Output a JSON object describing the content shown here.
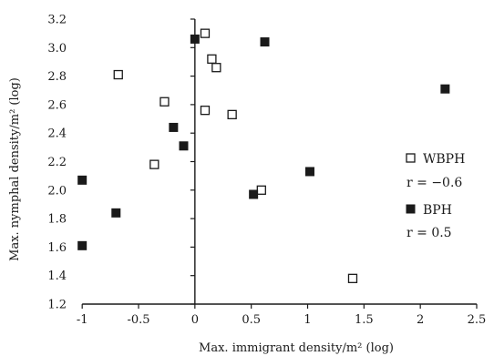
{
  "chart_data": {
    "type": "scatter",
    "xlabel": "Max. immigrant density/m² (log)",
    "ylabel": "Max. nymphal density/m²  (log)",
    "xlim": [
      -1.05,
      2.5
    ],
    "ylim": [
      1.2,
      3.2
    ],
    "x_ticks": [
      -1,
      -0.5,
      0,
      0.5,
      1,
      1.5,
      2,
      2.5
    ],
    "x_tick_labels": [
      "-1",
      "-0.5",
      "0",
      "0.5",
      "1",
      "1.5",
      "2",
      "2.5"
    ],
    "y_ticks": [
      1.2,
      1.4,
      1.6,
      1.8,
      2.0,
      2.2,
      2.4,
      2.6,
      2.8,
      3.0,
      3.2
    ],
    "y_tick_labels": [
      "1.2",
      "1.4",
      "1.6",
      "1.8",
      "2.0",
      "2.2",
      "2.4",
      "2.6",
      "2.8",
      "3.0",
      "3.2"
    ],
    "grid": false,
    "legend_position": "right",
    "series": [
      {
        "name": "WBPH",
        "marker": "open-square",
        "color": "#1a1a1a",
        "stat": "r = −0.6",
        "points": [
          {
            "x": 0.09,
            "y": 3.1
          },
          {
            "x": 0.15,
            "y": 2.92
          },
          {
            "x": 0.19,
            "y": 2.86
          },
          {
            "x": -0.68,
            "y": 2.81
          },
          {
            "x": -0.27,
            "y": 2.62
          },
          {
            "x": 0.09,
            "y": 2.56
          },
          {
            "x": 0.33,
            "y": 2.53
          },
          {
            "x": -0.36,
            "y": 2.18
          },
          {
            "x": 0.59,
            "y": 2.0
          },
          {
            "x": 1.4,
            "y": 1.38
          }
        ]
      },
      {
        "name": "BPH",
        "marker": "filled-square",
        "color": "#1a1a1a",
        "stat": "r = 0.5",
        "points": [
          {
            "x": 0.0,
            "y": 3.06
          },
          {
            "x": 0.62,
            "y": 3.04
          },
          {
            "x": -0.19,
            "y": 2.44
          },
          {
            "x": -0.1,
            "y": 2.31
          },
          {
            "x": 1.02,
            "y": 2.13
          },
          {
            "x": -1.0,
            "y": 2.07
          },
          {
            "x": 0.52,
            "y": 1.97
          },
          {
            "x": -0.7,
            "y": 1.84
          },
          {
            "x": -1.0,
            "y": 1.61
          },
          {
            "x": 2.22,
            "y": 2.71
          }
        ]
      }
    ]
  }
}
